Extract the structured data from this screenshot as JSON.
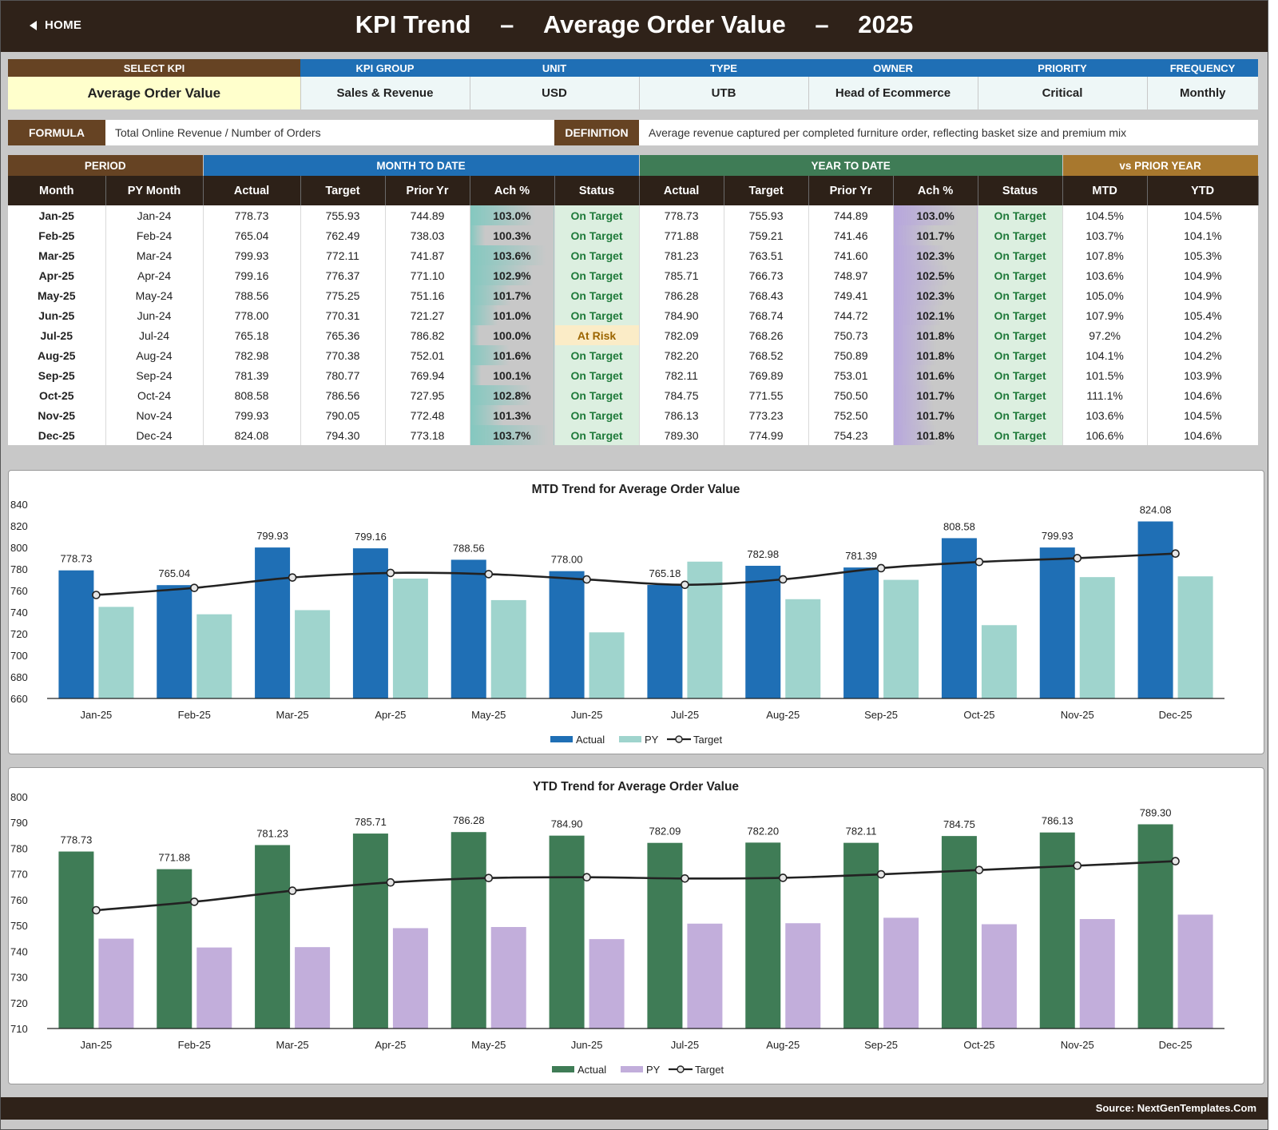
{
  "header": {
    "home_label": "HOME",
    "title_part1": "KPI Trend",
    "title_sep": "–",
    "title_part2": "Average Order Value",
    "title_part3": "2025"
  },
  "kpi_info": {
    "headers": [
      "SELECT KPI",
      "KPI GROUP",
      "UNIT",
      "TYPE",
      "OWNER",
      "PRIORITY",
      "FREQUENCY"
    ],
    "values": [
      "Average Order Value",
      "Sales & Revenue",
      "USD",
      "UTB",
      "Head of Ecommerce",
      "Critical",
      "Monthly"
    ]
  },
  "formula": {
    "label": "FORMULA",
    "value": "Total Online Revenue / Number of Orders"
  },
  "definition": {
    "label": "DEFINITION",
    "value": "Average revenue captured per completed furniture order, reflecting basket size and premium mix"
  },
  "table": {
    "groups": [
      "PERIOD",
      "MONTH TO DATE",
      "YEAR TO DATE",
      "vs PRIOR YEAR"
    ],
    "columns": [
      "Month",
      "PY Month",
      "Actual",
      "Target",
      "Prior Yr",
      "Ach %",
      "Status",
      "Actual",
      "Target",
      "Prior Yr",
      "Ach %",
      "Status",
      "MTD",
      "YTD"
    ],
    "rows": [
      [
        "Jan-25",
        "Jan-24",
        "778.73",
        "755.93",
        "744.89",
        "103.0%",
        "On Target",
        "778.73",
        "755.93",
        "744.89",
        "103.0%",
        "On Target",
        "104.5%",
        "104.5%"
      ],
      [
        "Feb-25",
        "Feb-24",
        "765.04",
        "762.49",
        "738.03",
        "100.3%",
        "On Target",
        "771.88",
        "759.21",
        "741.46",
        "101.7%",
        "On Target",
        "103.7%",
        "104.1%"
      ],
      [
        "Mar-25",
        "Mar-24",
        "799.93",
        "772.11",
        "741.87",
        "103.6%",
        "On Target",
        "781.23",
        "763.51",
        "741.60",
        "102.3%",
        "On Target",
        "107.8%",
        "105.3%"
      ],
      [
        "Apr-25",
        "Apr-24",
        "799.16",
        "776.37",
        "771.10",
        "102.9%",
        "On Target",
        "785.71",
        "766.73",
        "748.97",
        "102.5%",
        "On Target",
        "103.6%",
        "104.9%"
      ],
      [
        "May-25",
        "May-24",
        "788.56",
        "775.25",
        "751.16",
        "101.7%",
        "On Target",
        "786.28",
        "768.43",
        "749.41",
        "102.3%",
        "On Target",
        "105.0%",
        "104.9%"
      ],
      [
        "Jun-25",
        "Jun-24",
        "778.00",
        "770.31",
        "721.27",
        "101.0%",
        "On Target",
        "784.90",
        "768.74",
        "744.72",
        "102.1%",
        "On Target",
        "107.9%",
        "105.4%"
      ],
      [
        "Jul-25",
        "Jul-24",
        "765.18",
        "765.36",
        "786.82",
        "100.0%",
        "At Risk",
        "782.09",
        "768.26",
        "750.73",
        "101.8%",
        "On Target",
        "97.2%",
        "104.2%"
      ],
      [
        "Aug-25",
        "Aug-24",
        "782.98",
        "770.38",
        "752.01",
        "101.6%",
        "On Target",
        "782.20",
        "768.52",
        "750.89",
        "101.8%",
        "On Target",
        "104.1%",
        "104.2%"
      ],
      [
        "Sep-25",
        "Sep-24",
        "781.39",
        "780.77",
        "769.94",
        "100.1%",
        "On Target",
        "782.11",
        "769.89",
        "753.01",
        "101.6%",
        "On Target",
        "101.5%",
        "103.9%"
      ],
      [
        "Oct-25",
        "Oct-24",
        "808.58",
        "786.56",
        "727.95",
        "102.8%",
        "On Target",
        "784.75",
        "771.55",
        "750.50",
        "101.7%",
        "On Target",
        "111.1%",
        "104.6%"
      ],
      [
        "Nov-25",
        "Nov-24",
        "799.93",
        "790.05",
        "772.48",
        "101.3%",
        "On Target",
        "786.13",
        "773.23",
        "752.50",
        "101.7%",
        "On Target",
        "103.6%",
        "104.5%"
      ],
      [
        "Dec-25",
        "Dec-24",
        "824.08",
        "794.30",
        "773.18",
        "103.7%",
        "On Target",
        "789.30",
        "774.99",
        "754.23",
        "101.8%",
        "On Target",
        "106.6%",
        "104.6%"
      ]
    ]
  },
  "colors": {
    "header_bg": "#2f2219",
    "brown": "#664323",
    "blue": "#1f6fb5",
    "green": "#3f7c56",
    "gold": "#a8782e",
    "pale_teal": "#9fd4cd",
    "lavender": "#c2aedb",
    "on_target": "#1f7a3a",
    "at_risk": "#9c6500"
  },
  "chart_data": [
    {
      "type": "bar",
      "title": "MTD Trend for Average Order Value",
      "categories": [
        "Jan-25",
        "Feb-25",
        "Mar-25",
        "Apr-25",
        "May-25",
        "Jun-25",
        "Jul-25",
        "Aug-25",
        "Sep-25",
        "Oct-25",
        "Nov-25",
        "Dec-25"
      ],
      "series": [
        {
          "name": "Actual",
          "kind": "bar",
          "color": "#1f6fb5",
          "values": [
            778.73,
            765.04,
            799.93,
            799.16,
            788.56,
            778.0,
            765.18,
            782.98,
            781.39,
            808.58,
            799.93,
            824.08
          ],
          "labels": [
            "778.73",
            "765.04",
            "799.93",
            "799.16",
            "788.56",
            "778.00",
            "765.18",
            "782.98",
            "781.39",
            "808.58",
            "799.93",
            "824.08"
          ]
        },
        {
          "name": "PY",
          "kind": "bar",
          "color": "#9fd4cd",
          "values": [
            744.89,
            738.03,
            741.87,
            771.1,
            751.16,
            721.27,
            786.82,
            752.01,
            769.94,
            727.95,
            772.48,
            773.18
          ]
        },
        {
          "name": "Target",
          "kind": "line",
          "color": "#222222",
          "values": [
            755.93,
            762.49,
            772.11,
            776.37,
            775.25,
            770.31,
            765.36,
            770.38,
            780.77,
            786.56,
            790.05,
            794.3
          ]
        }
      ],
      "ylim": [
        660,
        840
      ],
      "yticks": [
        "660",
        "680",
        "700",
        "720",
        "740",
        "760",
        "780",
        "800",
        "820",
        "840"
      ],
      "legend": "bottom"
    },
    {
      "type": "bar",
      "title": "YTD Trend for Average Order Value",
      "categories": [
        "Jan-25",
        "Feb-25",
        "Mar-25",
        "Apr-25",
        "May-25",
        "Jun-25",
        "Jul-25",
        "Aug-25",
        "Sep-25",
        "Oct-25",
        "Nov-25",
        "Dec-25"
      ],
      "series": [
        {
          "name": "Actual",
          "kind": "bar",
          "color": "#3f7c56",
          "values": [
            778.73,
            771.88,
            781.23,
            785.71,
            786.28,
            784.9,
            782.09,
            782.2,
            782.11,
            784.75,
            786.13,
            789.3
          ],
          "labels": [
            "778.73",
            "771.88",
            "781.23",
            "785.71",
            "786.28",
            "784.90",
            "782.09",
            "782.20",
            "782.11",
            "784.75",
            "786.13",
            "789.30"
          ]
        },
        {
          "name": "PY",
          "kind": "bar",
          "color": "#c2aedb",
          "values": [
            744.89,
            741.46,
            741.6,
            748.97,
            749.41,
            744.72,
            750.73,
            750.89,
            753.01,
            750.5,
            752.5,
            754.23
          ]
        },
        {
          "name": "Target",
          "kind": "line",
          "color": "#222222",
          "values": [
            755.93,
            759.21,
            763.51,
            766.73,
            768.43,
            768.74,
            768.26,
            768.52,
            769.89,
            771.55,
            773.23,
            774.99
          ]
        }
      ],
      "ylim": [
        710,
        800
      ],
      "yticks": [
        "710",
        "720",
        "730",
        "740",
        "750",
        "760",
        "770",
        "780",
        "790",
        "800"
      ],
      "legend": "bottom"
    }
  ],
  "footer": {
    "source": "Source: NextGenTemplates.Com"
  }
}
